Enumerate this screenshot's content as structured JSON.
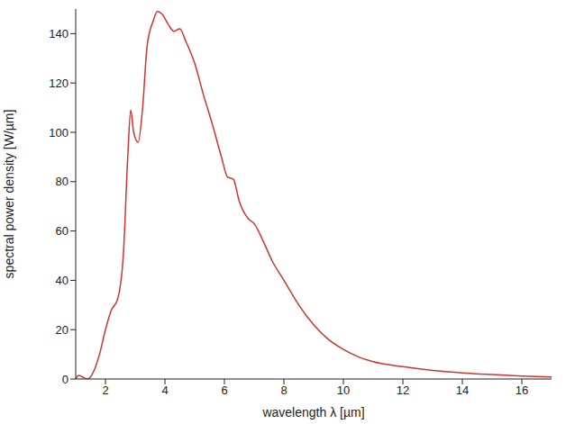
{
  "chart_data": {
    "type": "line",
    "x_label": "wavelength λ [µm]",
    "y_label": "spectral power density [W/µm]",
    "x": [
      1.0,
      1.1,
      1.2,
      1.4,
      1.6,
      1.8,
      2.0,
      2.2,
      2.4,
      2.6,
      2.75,
      2.85,
      2.95,
      3.1,
      3.25,
      3.4,
      3.6,
      3.75,
      3.9,
      4.1,
      4.3,
      4.5,
      4.7,
      5.0,
      5.3,
      5.6,
      5.9,
      6.1,
      6.3,
      6.5,
      6.8,
      7.0,
      7.3,
      7.6,
      8.0,
      8.5,
      9.0,
      9.5,
      10.0,
      10.5,
      11.0,
      12.0,
      13.0,
      14.0,
      15.0,
      16.0,
      17.0
    ],
    "values": [
      0,
      1.5,
      1,
      0,
      3,
      10,
      20,
      28,
      32,
      50,
      90,
      109,
      100,
      96,
      110,
      135,
      145,
      149,
      148,
      144,
      141,
      142,
      137,
      128,
      115,
      103,
      90,
      82,
      81,
      72,
      65,
      63,
      56,
      48,
      40,
      30,
      22,
      16,
      12,
      9,
      7,
      5,
      3.5,
      2.5,
      1.8,
      1.2,
      0.8
    ],
    "color": "#d0342c",
    "marker": "none",
    "xlim": [
      1,
      17
    ],
    "xticks": [
      2,
      4,
      6,
      8,
      10,
      12,
      14,
      16
    ],
    "ylim": [
      0,
      150
    ],
    "yticks": [
      0,
      20,
      40,
      60,
      80,
      100,
      120,
      140
    ],
    "grid": false
  }
}
